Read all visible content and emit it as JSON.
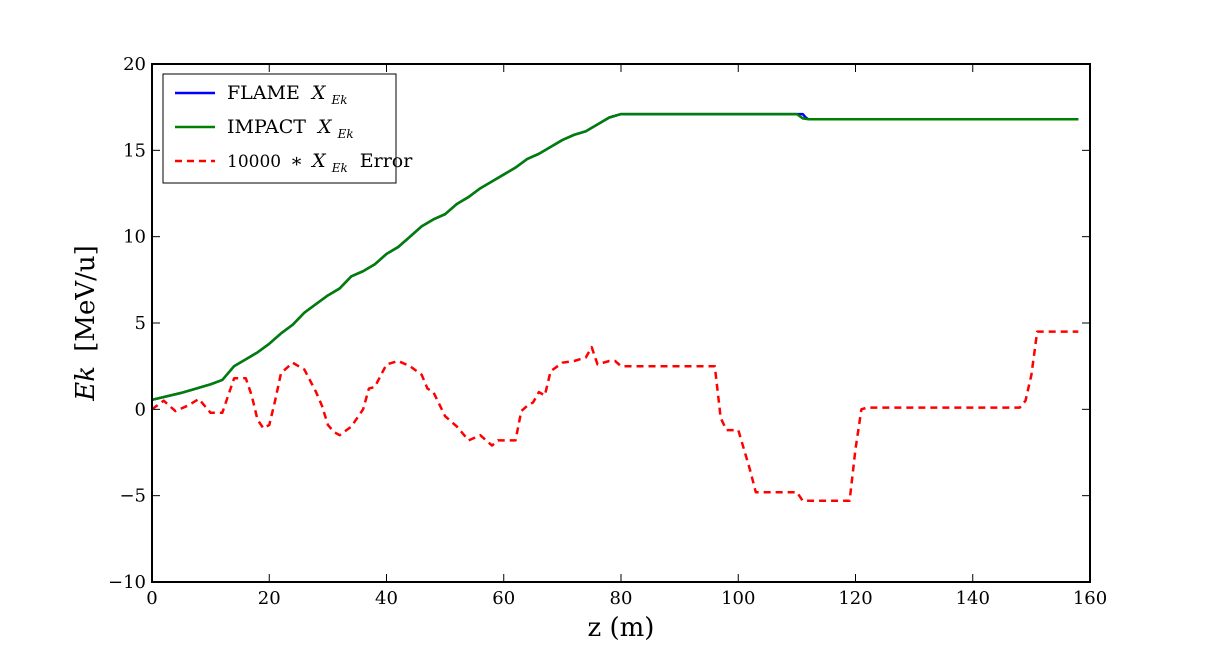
{
  "chart_data": {
    "type": "line",
    "title": "",
    "xlabel": "z (m)",
    "ylabel_italic": "Ek",
    "ylabel_unit": "[MeV/u]",
    "xlim": [
      0,
      160
    ],
    "ylim": [
      -10,
      20
    ],
    "xticks": [
      0,
      20,
      40,
      60,
      80,
      100,
      120,
      140,
      160
    ],
    "yticks": [
      -10,
      -5,
      0,
      5,
      10,
      15,
      20
    ],
    "ytick_labels": [
      "−10",
      "−5",
      "0",
      "5",
      "10",
      "15",
      "20"
    ],
    "grid": false,
    "legend_position": "top-left",
    "series": [
      {
        "name": "FLAME",
        "name_math_main": "X",
        "name_math_sub": "Ek",
        "color": "#0000ff",
        "style": "solid",
        "x": [
          0,
          5,
          10,
          12,
          14,
          16,
          18,
          20,
          22,
          24,
          26,
          28,
          30,
          32,
          34,
          36,
          38,
          40,
          42,
          44,
          46,
          48,
          50,
          52,
          54,
          56,
          58,
          60,
          62,
          64,
          66,
          68,
          70,
          72,
          74,
          76,
          78,
          80,
          90,
          100,
          110,
          111,
          111.5,
          112,
          158
        ],
        "y": [
          0.55,
          0.95,
          1.45,
          1.7,
          2.5,
          2.9,
          3.3,
          3.8,
          4.4,
          4.9,
          5.6,
          6.1,
          6.6,
          7.0,
          7.7,
          8.0,
          8.4,
          9.0,
          9.4,
          10.0,
          10.6,
          11.0,
          11.3,
          11.9,
          12.3,
          12.8,
          13.2,
          13.6,
          14.0,
          14.5,
          14.8,
          15.2,
          15.6,
          15.9,
          16.1,
          16.5,
          16.9,
          17.1,
          17.1,
          17.1,
          17.1,
          17.1,
          16.9,
          16.8,
          16.8
        ]
      },
      {
        "name": "IMPACT",
        "name_math_main": "X",
        "name_math_sub": "Ek",
        "color": "#008000",
        "style": "solid",
        "x": [
          0,
          5,
          10,
          12,
          14,
          16,
          18,
          20,
          22,
          24,
          26,
          28,
          30,
          32,
          34,
          36,
          38,
          40,
          42,
          44,
          46,
          48,
          50,
          52,
          54,
          56,
          58,
          60,
          62,
          64,
          66,
          68,
          70,
          72,
          74,
          76,
          78,
          80,
          90,
          100,
          110,
          111,
          112,
          158
        ],
        "y": [
          0.55,
          0.95,
          1.45,
          1.7,
          2.5,
          2.9,
          3.3,
          3.8,
          4.4,
          4.9,
          5.6,
          6.1,
          6.6,
          7.0,
          7.7,
          8.0,
          8.4,
          9.0,
          9.4,
          10.0,
          10.6,
          11.0,
          11.3,
          11.9,
          12.3,
          12.8,
          13.2,
          13.6,
          14.0,
          14.5,
          14.8,
          15.2,
          15.6,
          15.9,
          16.1,
          16.5,
          16.9,
          17.1,
          17.1,
          17.1,
          17.1,
          16.85,
          16.8,
          16.8
        ]
      },
      {
        "name": "Error",
        "name_math_prefix": "10000",
        "name_math_main": "X",
        "name_math_sub": "Ek",
        "color": "#ff0000",
        "style": "dashed",
        "x": [
          0,
          2,
          4,
          6,
          8,
          10,
          12,
          14,
          16,
          17,
          18,
          19,
          20,
          21,
          22,
          24,
          26,
          28,
          29,
          30,
          31,
          32,
          34,
          36,
          37,
          38,
          40,
          42,
          44,
          46,
          47,
          48,
          50,
          52,
          54,
          56,
          58,
          59,
          60,
          62,
          63,
          64,
          65,
          66,
          67,
          68,
          70,
          72,
          74,
          75,
          76,
          78,
          79,
          80,
          96,
          97,
          98,
          100,
          102,
          103,
          106,
          110,
          111,
          115,
          119,
          120,
          121,
          122,
          148,
          149,
          150,
          151,
          158
        ],
        "y": [
          0.0,
          0.5,
          -0.1,
          0.2,
          0.6,
          -0.2,
          -0.2,
          1.8,
          1.8,
          0.8,
          -0.6,
          -1.1,
          -0.9,
          0.5,
          2.1,
          2.7,
          2.3,
          1.0,
          0.2,
          -0.9,
          -1.3,
          -1.5,
          -1.0,
          0.0,
          1.2,
          1.3,
          2.6,
          2.8,
          2.5,
          2.0,
          1.2,
          1.0,
          -0.4,
          -1.0,
          -1.8,
          -1.5,
          -2.1,
          -1.8,
          -1.8,
          -1.8,
          -0.1,
          0.2,
          0.4,
          1.0,
          0.8,
          2.2,
          2.7,
          2.8,
          3.0,
          3.6,
          2.6,
          2.8,
          2.8,
          2.5,
          2.5,
          -0.5,
          -1.2,
          -1.2,
          -3.5,
          -4.8,
          -4.8,
          -4.8,
          -5.3,
          -5.3,
          -5.3,
          -2.3,
          0.0,
          0.1,
          0.1,
          0.5,
          2.0,
          4.5,
          4.5
        ]
      }
    ]
  }
}
